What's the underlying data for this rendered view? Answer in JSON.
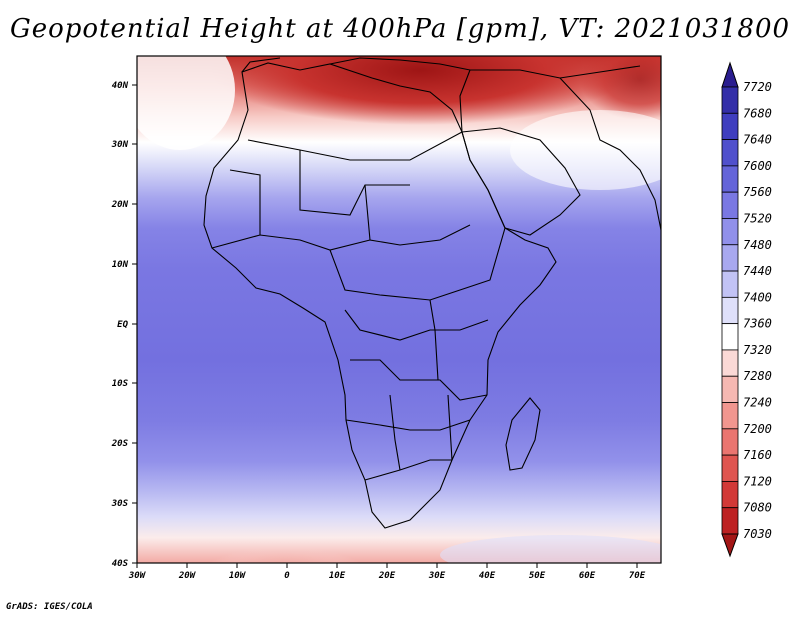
{
  "title": "Geopotential Height at 400hPa [gpm], VT: 2021031800",
  "credit": "GrADS: IGES/COLA",
  "map": {
    "lon_range": [
      -30,
      75
    ],
    "lat_range": [
      -40,
      45
    ],
    "lon_ticks": [
      "30W",
      "20W",
      "10W",
      "0",
      "10E",
      "20E",
      "30E",
      "40E",
      "50E",
      "60E",
      "70E"
    ],
    "lat_ticks": [
      "40S",
      "30S",
      "20S",
      "10S",
      "EQ",
      "10N",
      "20N",
      "30N",
      "40N"
    ],
    "variable": "Geopotential Height",
    "level": "400hPa",
    "units": "gpm",
    "valid_time": "2021031800"
  },
  "colorbar": {
    "labels": [
      "7720",
      "7680",
      "7640",
      "7600",
      "7560",
      "7520",
      "7480",
      "7440",
      "7400",
      "7360",
      "7320",
      "7280",
      "7240",
      "7200",
      "7160",
      "7120",
      "7080",
      "7030"
    ],
    "colors": [
      "#2a1d8f",
      "#332ea8",
      "#3f3ebf",
      "#5050cc",
      "#6464d9",
      "#7a78e3",
      "#9190ea",
      "#a8a8ef",
      "#c2c3f5",
      "#dfe0fa",
      "#ffffff",
      "#fbd9d6",
      "#f6b8b2",
      "#f1968f",
      "#ea7570",
      "#df5550",
      "#d23937",
      "#bd2122",
      "#a31616"
    ]
  }
}
